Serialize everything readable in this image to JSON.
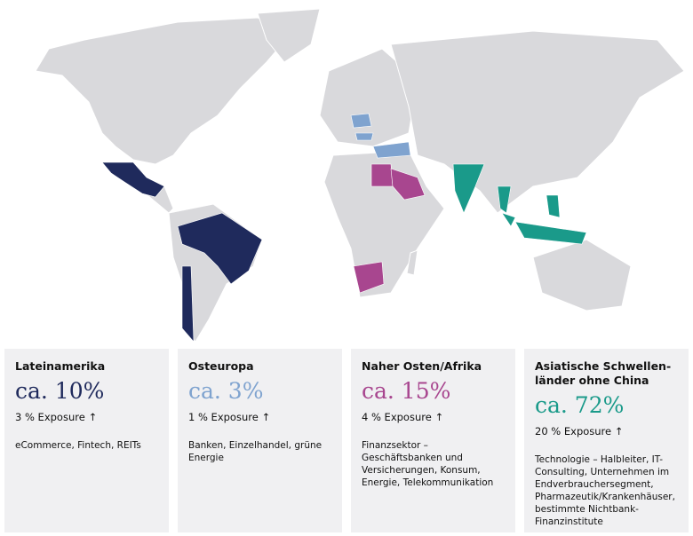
{
  "regions": [
    {
      "name": "Lateinamerika",
      "share": "ca. 10%",
      "exposure": "3 % Exposure ↑",
      "sectors": "eCommerce, Fintech, REITs",
      "color": "#1f2a5c"
    },
    {
      "name": "Osteuropa",
      "share": "ca. 3%",
      "exposure": "1 % Exposure ↑",
      "sectors": "Banken, Einzelhandel, grüne Energie",
      "color": "#7fa3cf"
    },
    {
      "name": "Naher Osten/Afrika",
      "share": "ca. 15%",
      "exposure": "4 % Exposure ↑",
      "sectors": "Finanzsektor – Geschäftsbanken und Versicherungen, Konsum, Energie, Telekommunikation",
      "color": "#a8468f"
    },
    {
      "name": "Asiatische Schwellen­länder ohne China",
      "share": "ca. 72%",
      "exposure": "20 % Exposure ↑",
      "sectors": "Technologie – Halbleiter, IT-Consulting, Unternehmen im Endverbrauchersegment, Pharmazeutik/Krankenhäuser, bestimmte Nichtbank-Finanzinstitute",
      "color": "#1a9a8a"
    }
  ]
}
